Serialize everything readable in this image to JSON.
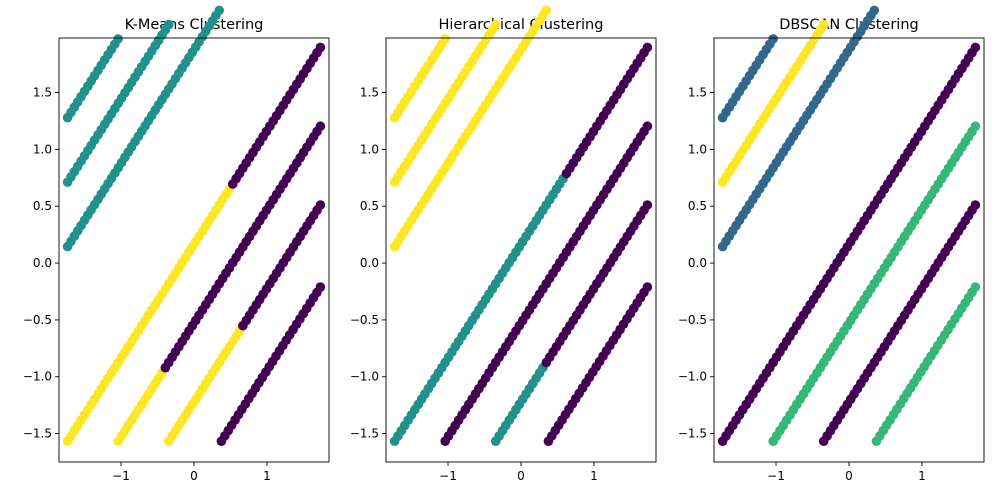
{
  "colors": {
    "purple": "#440154",
    "darkblue": "#31688e",
    "teal": "#21918c",
    "green": "#35b779",
    "yellow": "#fde725"
  },
  "chart_data": [
    {
      "type": "scatter",
      "title": "K-Means Clustering",
      "xlabel": "",
      "ylabel": "",
      "xlim": [
        -1.85,
        1.85
      ],
      "ylim": [
        -1.75,
        1.98
      ],
      "xticks": [
        -1,
        0,
        1
      ],
      "yticks": [
        -1.5,
        -1.0,
        -0.5,
        0.0,
        0.5,
        1.0,
        1.5
      ],
      "legend": "none",
      "grid": false,
      "lines": [
        {
          "x0": -1.732,
          "x1": -1.039,
          "y0": 1.279,
          "count": 16,
          "segments": [
            {
              "upto": 16,
              "color": "teal"
            }
          ]
        },
        {
          "x0": -1.732,
          "x1": -0.346,
          "y0": 0.712,
          "count": 31,
          "segments": [
            {
              "upto": 31,
              "color": "teal"
            }
          ]
        },
        {
          "x0": -1.732,
          "x1": 0.346,
          "y0": 0.145,
          "count": 46,
          "segments": [
            {
              "upto": 46,
              "color": "teal"
            }
          ]
        },
        {
          "x0": -1.732,
          "x1": 1.732,
          "y0": -1.567,
          "count": 76,
          "segments": [
            {
              "upto": 49,
              "color": "yellow"
            },
            {
              "upto": 76,
              "color": "purple"
            }
          ]
        },
        {
          "x0": -1.039,
          "x1": 1.732,
          "y0": -1.567,
          "count": 61,
          "segments": [
            {
              "upto": 14,
              "color": "yellow"
            },
            {
              "upto": 61,
              "color": "purple"
            }
          ]
        },
        {
          "x0": -0.346,
          "x1": 1.732,
          "y0": -1.567,
          "count": 46,
          "segments": [
            {
              "upto": 22,
              "color": "yellow"
            },
            {
              "upto": 46,
              "color": "purple"
            }
          ]
        },
        {
          "x0": 0.376,
          "x1": 1.732,
          "y0": -1.567,
          "count": 30,
          "segments": [
            {
              "upto": 30,
              "color": "purple"
            }
          ]
        }
      ]
    },
    {
      "type": "scatter",
      "title": "Hierarchical Clustering",
      "xlabel": "",
      "ylabel": "",
      "xlim": [
        -1.85,
        1.85
      ],
      "ylim": [
        -1.75,
        1.98
      ],
      "xticks": [
        -1,
        0,
        1
      ],
      "yticks": [
        -1.5,
        -1.0,
        -0.5,
        0.0,
        0.5,
        1.0,
        1.5
      ],
      "legend": "none",
      "grid": false,
      "lines": [
        {
          "x0": -1.732,
          "x1": -1.039,
          "y0": 1.279,
          "count": 16,
          "segments": [
            {
              "upto": 16,
              "color": "yellow"
            }
          ]
        },
        {
          "x0": -1.732,
          "x1": -0.346,
          "y0": 0.712,
          "count": 31,
          "segments": [
            {
              "upto": 31,
              "color": "yellow"
            }
          ]
        },
        {
          "x0": -1.732,
          "x1": 0.346,
          "y0": 0.145,
          "count": 46,
          "segments": [
            {
              "upto": 46,
              "color": "yellow"
            }
          ]
        },
        {
          "x0": -1.732,
          "x1": 1.732,
          "y0": -1.567,
          "count": 76,
          "segments": [
            {
              "upto": 51,
              "color": "teal"
            },
            {
              "upto": 76,
              "color": "purple"
            }
          ]
        },
        {
          "x0": -1.039,
          "x1": 1.732,
          "y0": -1.567,
          "count": 61,
          "segments": [
            {
              "upto": 61,
              "color": "purple"
            }
          ]
        },
        {
          "x0": -0.346,
          "x1": 1.732,
          "y0": -1.567,
          "count": 46,
          "segments": [
            {
              "upto": 15,
              "color": "teal"
            },
            {
              "upto": 46,
              "color": "purple"
            }
          ]
        },
        {
          "x0": 0.376,
          "x1": 1.732,
          "y0": -1.567,
          "count": 30,
          "segments": [
            {
              "upto": 30,
              "color": "purple"
            }
          ]
        }
      ]
    },
    {
      "type": "scatter",
      "title": "DBSCAN Clustering",
      "xlabel": "",
      "ylabel": "",
      "xlim": [
        -1.85,
        1.85
      ],
      "ylim": [
        -1.75,
        1.98
      ],
      "xticks": [
        -1,
        0,
        1
      ],
      "yticks": [
        -1.5,
        -1.0,
        -0.5,
        0.0,
        0.5,
        1.0,
        1.5
      ],
      "legend": "none",
      "grid": false,
      "lines": [
        {
          "x0": -1.732,
          "x1": -1.039,
          "y0": 1.279,
          "count": 16,
          "segments": [
            {
              "upto": 16,
              "color": "darkblue"
            }
          ]
        },
        {
          "x0": -1.732,
          "x1": -0.346,
          "y0": 0.712,
          "count": 31,
          "segments": [
            {
              "upto": 31,
              "color": "yellow"
            }
          ]
        },
        {
          "x0": -1.732,
          "x1": 0.346,
          "y0": 0.145,
          "count": 46,
          "segments": [
            {
              "upto": 46,
              "color": "darkblue"
            }
          ]
        },
        {
          "x0": -1.732,
          "x1": 1.732,
          "y0": -1.567,
          "count": 76,
          "segments": [
            {
              "upto": 76,
              "color": "purple"
            }
          ]
        },
        {
          "x0": -1.039,
          "x1": 1.732,
          "y0": -1.567,
          "count": 61,
          "segments": [
            {
              "upto": 61,
              "color": "green"
            }
          ]
        },
        {
          "x0": -0.346,
          "x1": 1.732,
          "y0": -1.567,
          "count": 46,
          "segments": [
            {
              "upto": 46,
              "color": "purple"
            }
          ]
        },
        {
          "x0": 0.376,
          "x1": 1.732,
          "y0": -1.567,
          "count": 30,
          "segments": [
            {
              "upto": 30,
              "color": "green"
            }
          ]
        }
      ]
    }
  ]
}
